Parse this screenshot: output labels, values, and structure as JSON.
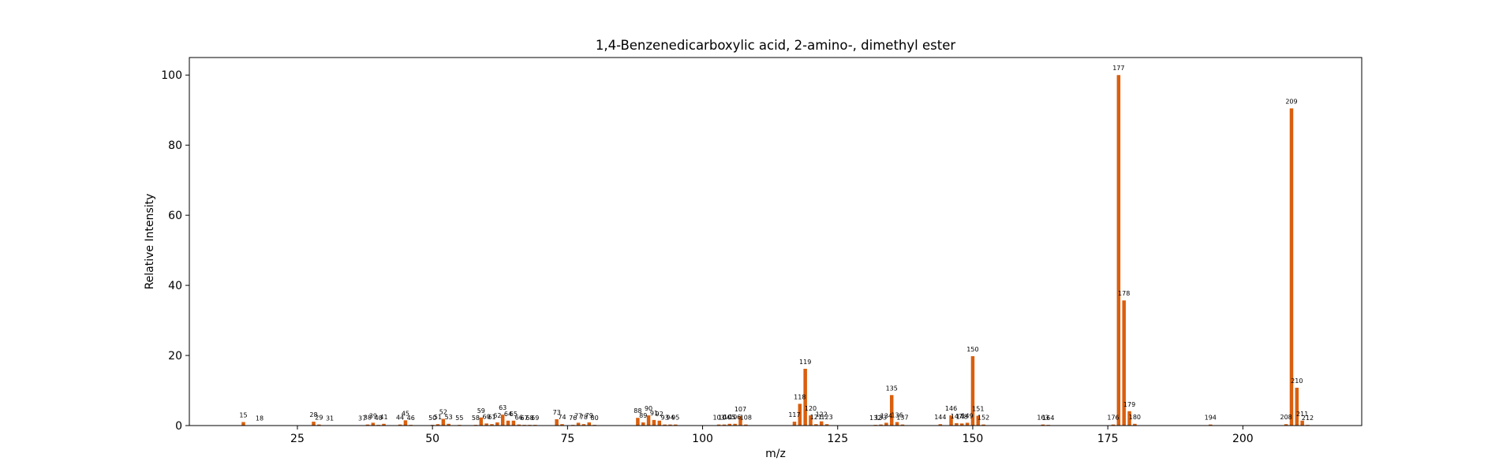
{
  "chart_data": {
    "type": "bar",
    "title": "1,4-Benzenedicarboxylic acid, 2-amino-, dimethyl ester",
    "xlabel": "m/z",
    "ylabel": "Relative Intensity",
    "xlim": [
      5,
      222
    ],
    "ylim": [
      0,
      105
    ],
    "xticks": [
      25,
      50,
      75,
      100,
      125,
      150,
      175,
      200
    ],
    "yticks": [
      0,
      20,
      40,
      60,
      80,
      100
    ],
    "bar_color": "#d95f0e",
    "grid": false,
    "peaks": [
      {
        "mz": 15,
        "intensity": 1.0
      },
      {
        "mz": 18,
        "intensity": 0.1
      },
      {
        "mz": 28,
        "intensity": 1.1
      },
      {
        "mz": 29,
        "intensity": 0.3
      },
      {
        "mz": 31,
        "intensity": 0.1
      },
      {
        "mz": 37,
        "intensity": 0.1
      },
      {
        "mz": 38,
        "intensity": 0.3
      },
      {
        "mz": 39,
        "intensity": 0.8
      },
      {
        "mz": 40,
        "intensity": 0.2
      },
      {
        "mz": 41,
        "intensity": 0.5
      },
      {
        "mz": 44,
        "intensity": 0.3
      },
      {
        "mz": 45,
        "intensity": 1.5
      },
      {
        "mz": 46,
        "intensity": 0.2
      },
      {
        "mz": 50,
        "intensity": 0.2
      },
      {
        "mz": 51,
        "intensity": 0.4
      },
      {
        "mz": 52,
        "intensity": 1.9
      },
      {
        "mz": 53,
        "intensity": 0.5
      },
      {
        "mz": 55,
        "intensity": 0.2
      },
      {
        "mz": 58,
        "intensity": 0.2
      },
      {
        "mz": 59,
        "intensity": 2.3
      },
      {
        "mz": 60,
        "intensity": 0.6
      },
      {
        "mz": 61,
        "intensity": 0.4
      },
      {
        "mz": 62,
        "intensity": 0.9
      },
      {
        "mz": 63,
        "intensity": 3.1
      },
      {
        "mz": 64,
        "intensity": 1.4
      },
      {
        "mz": 65,
        "intensity": 1.4
      },
      {
        "mz": 66,
        "intensity": 0.3
      },
      {
        "mz": 67,
        "intensity": 0.2
      },
      {
        "mz": 68,
        "intensity": 0.2
      },
      {
        "mz": 69,
        "intensity": 0.2
      },
      {
        "mz": 73,
        "intensity": 1.8
      },
      {
        "mz": 74,
        "intensity": 0.4
      },
      {
        "mz": 76,
        "intensity": 0.2
      },
      {
        "mz": 77,
        "intensity": 0.8
      },
      {
        "mz": 78,
        "intensity": 0.4
      },
      {
        "mz": 79,
        "intensity": 0.9
      },
      {
        "mz": 80,
        "intensity": 0.2
      },
      {
        "mz": 88,
        "intensity": 2.2
      },
      {
        "mz": 89,
        "intensity": 0.9
      },
      {
        "mz": 90,
        "intensity": 2.9
      },
      {
        "mz": 91,
        "intensity": 1.6
      },
      {
        "mz": 92,
        "intensity": 1.4
      },
      {
        "mz": 93,
        "intensity": 0.3
      },
      {
        "mz": 94,
        "intensity": 0.3
      },
      {
        "mz": 95,
        "intensity": 0.3
      },
      {
        "mz": 103,
        "intensity": 0.3
      },
      {
        "mz": 104,
        "intensity": 0.3
      },
      {
        "mz": 105,
        "intensity": 0.5
      },
      {
        "mz": 106,
        "intensity": 0.5
      },
      {
        "mz": 107,
        "intensity": 2.7
      },
      {
        "mz": 108,
        "intensity": 0.3
      },
      {
        "mz": 117,
        "intensity": 1.1
      },
      {
        "mz": 118,
        "intensity": 6.2
      },
      {
        "mz": 119,
        "intensity": 16.2
      },
      {
        "mz": 120,
        "intensity": 2.9
      },
      {
        "mz": 121,
        "intensity": 0.4
      },
      {
        "mz": 122,
        "intensity": 1.2
      },
      {
        "mz": 123,
        "intensity": 0.4
      },
      {
        "mz": 132,
        "intensity": 0.2
      },
      {
        "mz": 133,
        "intensity": 0.3
      },
      {
        "mz": 134,
        "intensity": 0.8
      },
      {
        "mz": 135,
        "intensity": 8.7
      },
      {
        "mz": 136,
        "intensity": 1.0
      },
      {
        "mz": 137,
        "intensity": 0.3
      },
      {
        "mz": 144,
        "intensity": 0.4
      },
      {
        "mz": 146,
        "intensity": 2.9
      },
      {
        "mz": 147,
        "intensity": 0.7
      },
      {
        "mz": 148,
        "intensity": 0.6
      },
      {
        "mz": 149,
        "intensity": 0.8
      },
      {
        "mz": 150,
        "intensity": 19.8
      },
      {
        "mz": 151,
        "intensity": 2.8
      },
      {
        "mz": 152,
        "intensity": 0.3
      },
      {
        "mz": 163,
        "intensity": 0.3
      },
      {
        "mz": 164,
        "intensity": 0.2
      },
      {
        "mz": 176,
        "intensity": 0.3
      },
      {
        "mz": 177,
        "intensity": 100
      },
      {
        "mz": 178,
        "intensity": 35.7
      },
      {
        "mz": 179,
        "intensity": 4.1
      },
      {
        "mz": 180,
        "intensity": 0.5
      },
      {
        "mz": 194,
        "intensity": 0.3
      },
      {
        "mz": 208,
        "intensity": 0.4
      },
      {
        "mz": 209,
        "intensity": 90.5
      },
      {
        "mz": 210,
        "intensity": 10.8
      },
      {
        "mz": 211,
        "intensity": 1.4
      },
      {
        "mz": 212,
        "intensity": 0.2
      }
    ]
  }
}
